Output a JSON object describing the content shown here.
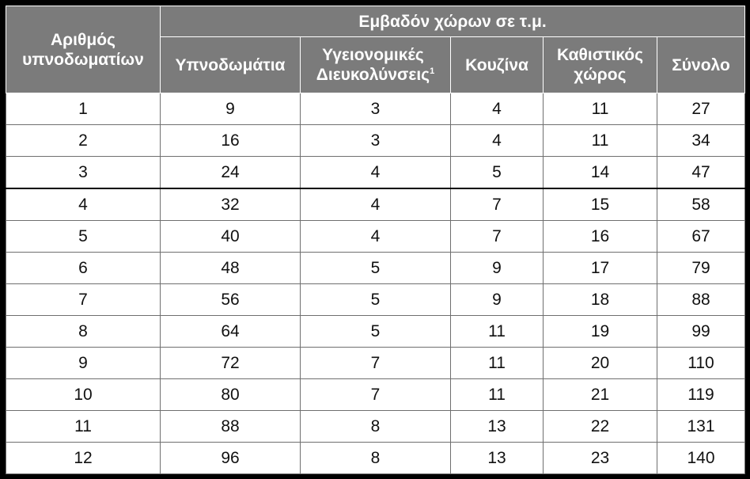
{
  "table": {
    "row_header": "Αριθμός\nυπνοδωματίων",
    "group_header": "Εμβαδόν χώρων σε τ.μ.",
    "columns": {
      "bedrooms": "Υπνοδωμάτια",
      "sanitary": "Υγειονομικές\nΔιευκολύνσεις",
      "sanitary_note": "1",
      "kitchen": "Κουζίνα",
      "living": "Καθιστικός\nχώρος",
      "total": "Σύνολο"
    },
    "rows": [
      {
        "n": "1",
        "bedrooms": "9",
        "sanitary": "3",
        "kitchen": "4",
        "living": "11",
        "total": "27"
      },
      {
        "n": "2",
        "bedrooms": "16",
        "sanitary": "3",
        "kitchen": "4",
        "living": "11",
        "total": "34"
      },
      {
        "n": "3",
        "bedrooms": "24",
        "sanitary": "4",
        "kitchen": "5",
        "living": "14",
        "total": "47"
      },
      {
        "n": "4",
        "bedrooms": "32",
        "sanitary": "4",
        "kitchen": "7",
        "living": "15",
        "total": "58"
      },
      {
        "n": "5",
        "bedrooms": "40",
        "sanitary": "4",
        "kitchen": "7",
        "living": "16",
        "total": "67"
      },
      {
        "n": "6",
        "bedrooms": "48",
        "sanitary": "5",
        "kitchen": "9",
        "living": "17",
        "total": "79"
      },
      {
        "n": "7",
        "bedrooms": "56",
        "sanitary": "5",
        "kitchen": "9",
        "living": "18",
        "total": "88"
      },
      {
        "n": "8",
        "bedrooms": "64",
        "sanitary": "5",
        "kitchen": "11",
        "living": "19",
        "total": "99"
      },
      {
        "n": "9",
        "bedrooms": "72",
        "sanitary": "7",
        "kitchen": "11",
        "living": "20",
        "total": "110"
      },
      {
        "n": "10",
        "bedrooms": "80",
        "sanitary": "7",
        "kitchen": "11",
        "living": "21",
        "total": "119"
      },
      {
        "n": "11",
        "bedrooms": "88",
        "sanitary": "8",
        "kitchen": "13",
        "living": "22",
        "total": "131"
      },
      {
        "n": "12",
        "bedrooms": "96",
        "sanitary": "8",
        "kitchen": "13",
        "living": "23",
        "total": "140"
      }
    ]
  },
  "colors": {
    "header_bg": "#7b7b7b",
    "header_text": "#ffffff",
    "frame": "#000000"
  }
}
